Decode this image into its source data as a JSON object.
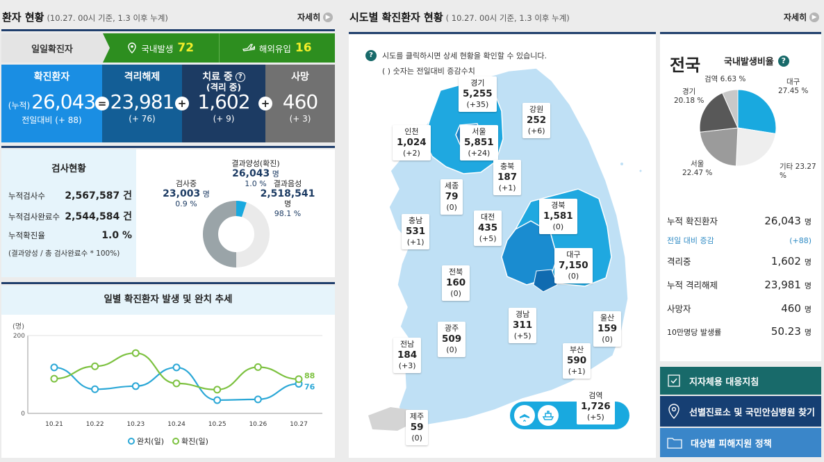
{
  "left": {
    "title": "환자 현황",
    "basis": "(10.27. 00시 기준, 1.3 이후 누계)",
    "more": "자세히",
    "daily": {
      "label": "일일확진자",
      "domestic_label": "국내발생",
      "domestic_value": "72",
      "overseas_label": "해외유입",
      "overseas_value": "16"
    },
    "stats": [
      {
        "title": "확진환자",
        "prefix": "(누적)",
        "value": "26,043",
        "delta": "전일대비 (+ 88)",
        "op": "="
      },
      {
        "title": "격리해제",
        "value": "23,981",
        "delta": "(+ 76)",
        "op": "+"
      },
      {
        "title": "치료 중",
        "subtitle": "(격리 중)",
        "value": "1,602",
        "delta": "(+ 9)",
        "op": "+"
      },
      {
        "title": "사망",
        "value": "460",
        "delta": "(+ 3)"
      }
    ],
    "tests": {
      "title": "검사현황",
      "rows": [
        {
          "label": "누적검사수",
          "value": "2,567,587 건"
        },
        {
          "label": "누적검사완료수",
          "value": "2,544,584 건"
        },
        {
          "label": "누적확진율",
          "value": "1.0 %"
        }
      ],
      "note": "(결과양성 / 총 검사완료수 * 100%)",
      "donut": {
        "positive_label": "결과양성(확진)",
        "positive_value": "26,043",
        "positive_unit": "명",
        "positive_pct": "1.0 %",
        "pending_label": "검사중",
        "pending_value": "23,003",
        "pending_unit": "명",
        "pending_pct": "0.9 %",
        "negative_label": "결과음성",
        "negative_value": "2,518,541",
        "negative_unit": "명",
        "negative_pct": "98.1 %"
      }
    },
    "trend": {
      "title": "일별 확진환자 발생 및 완치 추세",
      "unit": "(명)",
      "legend_release": "완치(일)",
      "legend_confirmed": "확진(일)"
    }
  },
  "chart_data": {
    "type": "line",
    "title": "일별 확진환자 발생 및 완치 추세",
    "ylabel": "(명)",
    "ylim": [
      0,
      200
    ],
    "yticks": [
      "0",
      "200"
    ],
    "categories": [
      "10.21",
      "10.22",
      "10.23",
      "10.24",
      "10.25",
      "10.26",
      "10.27"
    ],
    "series": [
      {
        "name": "완치(일)",
        "color": "#2aa7d6",
        "values": [
          118,
          62,
          70,
          118,
          34,
          36,
          76
        ]
      },
      {
        "name": "확진(일)",
        "color": "#7cc13f",
        "values": [
          89,
          121,
          155,
          77,
          61,
          119,
          88
        ]
      }
    ],
    "end_labels": [
      "76",
      "88"
    ]
  },
  "map": {
    "title": "시도별 확진환자 현황",
    "basis": "( 10.27. 00시 기준, 1.3 이후 누계)",
    "more": "자세히",
    "help1": "시도를 클릭하시면 상세 현황을 확인할 수 있습니다.",
    "help2": "( ) 숫자는 전일대비 증감수치",
    "regions": [
      {
        "name": "경기",
        "value": "5,255",
        "delta": "(+35)"
      },
      {
        "name": "강원",
        "value": "252",
        "delta": "(+6)"
      },
      {
        "name": "인천",
        "value": "1,024",
        "delta": "(+2)"
      },
      {
        "name": "서울",
        "value": "5,851",
        "delta": "(+24)"
      },
      {
        "name": "충북",
        "value": "187",
        "delta": "(+1)"
      },
      {
        "name": "세종",
        "value": "79",
        "delta": "(0)"
      },
      {
        "name": "경북",
        "value": "1,581",
        "delta": "(0)"
      },
      {
        "name": "충남",
        "value": "531",
        "delta": "(+1)"
      },
      {
        "name": "대전",
        "value": "435",
        "delta": "(+5)"
      },
      {
        "name": "대구",
        "value": "7,150",
        "delta": "(0)"
      },
      {
        "name": "전북",
        "value": "160",
        "delta": "(0)"
      },
      {
        "name": "경남",
        "value": "311",
        "delta": "(+5)"
      },
      {
        "name": "울산",
        "value": "159",
        "delta": "(0)"
      },
      {
        "name": "광주",
        "value": "509",
        "delta": "(0)"
      },
      {
        "name": "전남",
        "value": "184",
        "delta": "(+3)"
      },
      {
        "name": "부산",
        "value": "590",
        "delta": "(+1)"
      },
      {
        "name": "제주",
        "value": "59",
        "delta": "(0)"
      }
    ],
    "quarantine": {
      "name": "검역",
      "value": "1,726",
      "delta": "(+5)"
    }
  },
  "national": {
    "title": "전국",
    "ratio_label": "국내발생비율",
    "pie": [
      {
        "name": "대구",
        "pct": "27.45 %",
        "value": 27.45,
        "color": "#19a9df"
      },
      {
        "name": "기타",
        "pct": "23.27 %",
        "value": 23.27,
        "color": "#eeeeee"
      },
      {
        "name": "서울",
        "pct": "22.47 %",
        "value": 22.47,
        "color": "#9b9b9b"
      },
      {
        "name": "경기",
        "pct": "20.18 %",
        "value": 20.18,
        "color": "#585858"
      },
      {
        "name": "검역",
        "pct": "6.63 %",
        "value": 6.63,
        "color": "#c8c8c8"
      }
    ],
    "rows": [
      {
        "label": "누적 확진환자",
        "value": "26,043",
        "unit": "명"
      },
      {
        "label": "전일 대비 증감",
        "value": "(+88)",
        "unit": ""
      },
      {
        "label": "격리중",
        "value": "1,602",
        "unit": "명"
      },
      {
        "label": "누적 격리해제",
        "value": "23,981",
        "unit": "명"
      },
      {
        "label": "사망자",
        "value": "460",
        "unit": "명"
      },
      {
        "label": "10만명당 발생률",
        "value": "50.23",
        "unit": "명"
      }
    ],
    "buttons": [
      {
        "label": "지자체용 대응지침",
        "color": "#186a6a"
      },
      {
        "label": "선별진료소 및 국민안심병원 찾기",
        "color": "#163f73"
      },
      {
        "label": "대상별 피해지원 정책",
        "color": "#3a86c9"
      }
    ]
  }
}
